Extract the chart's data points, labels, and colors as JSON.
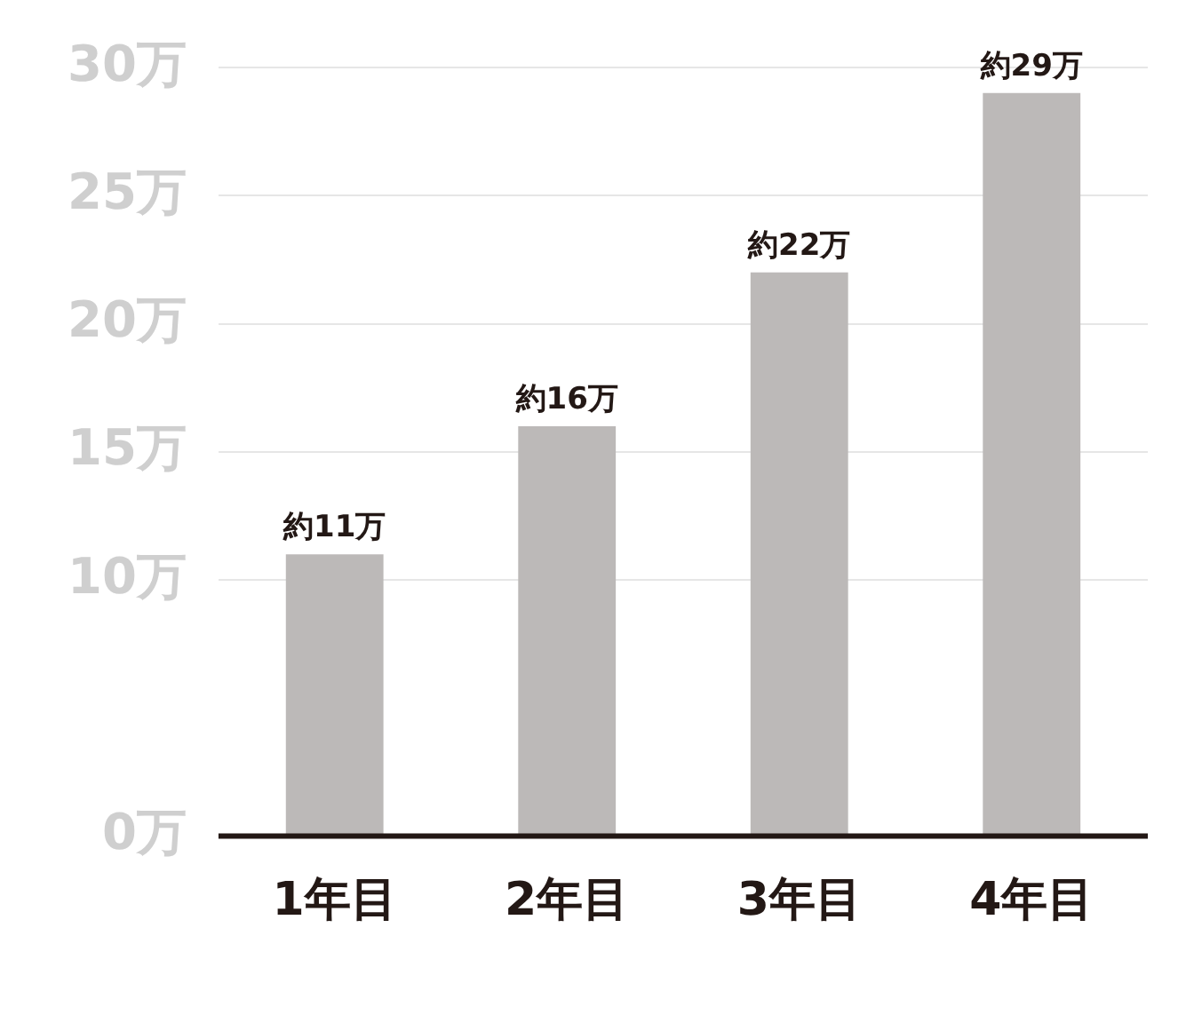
{
  "chart_data": {
    "type": "bar",
    "categories": [
      "1年目",
      "2年目",
      "3年目",
      "4年目"
    ],
    "values": [
      11,
      16,
      22,
      29
    ],
    "color": "#bcb9b8",
    "value_labels": [
      "約11万",
      "約16万",
      "約22万",
      "約29万"
    ],
    "ylim": [
      0,
      30
    ],
    "yticks": [
      {
        "value": 0,
        "label": "0万"
      },
      {
        "value": 10,
        "label": "10万"
      },
      {
        "value": 15,
        "label": "15万"
      },
      {
        "value": 20,
        "label": "20万"
      },
      {
        "value": 25,
        "label": "25万"
      },
      {
        "value": 30,
        "label": "30万"
      }
    ],
    "grid": "y",
    "legend": false
  }
}
